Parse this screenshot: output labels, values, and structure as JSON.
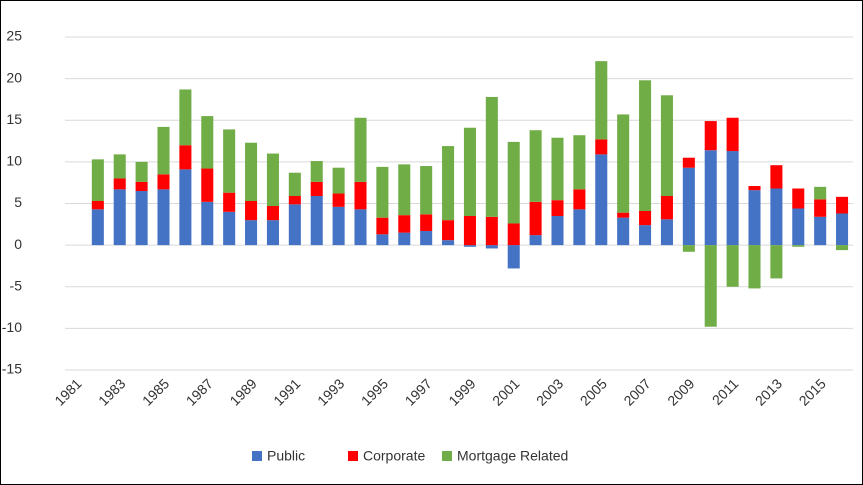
{
  "chart_data": {
    "type": "bar",
    "stacked": true,
    "categories": [
      "1981",
      null,
      "1983",
      null,
      "1985",
      null,
      "1987",
      null,
      "1989",
      null,
      "1991",
      null,
      "1993",
      null,
      "1995",
      null,
      "1997",
      null,
      "1999",
      null,
      "2001",
      null,
      "2003",
      null,
      "2005",
      null,
      "2007",
      null,
      "2009",
      null,
      "2011",
      null,
      "2013",
      null,
      "2015",
      null
    ],
    "series": [
      {
        "name": "Public",
        "color": "#4472c4",
        "values": [
          null,
          4.3,
          6.7,
          6.5,
          6.7,
          9.1,
          5.2,
          4.0,
          3.0,
          3.0,
          4.9,
          5.9,
          4.6,
          4.3,
          1.3,
          1.5,
          1.7,
          0.6,
          -0.2,
          -0.4,
          -2.8,
          1.2,
          3.5,
          4.3,
          10.9,
          3.3,
          2.4,
          3.1,
          9.3,
          11.4,
          11.3,
          6.6,
          6.8,
          4.4,
          3.4,
          3.8
        ]
      },
      {
        "name": "Corporate",
        "color": "#ff0000",
        "values": [
          null,
          1.0,
          1.3,
          1.1,
          1.8,
          2.9,
          4.0,
          2.3,
          2.3,
          1.7,
          1.0,
          1.7,
          1.6,
          3.3,
          2.0,
          2.1,
          2.0,
          2.4,
          3.5,
          3.4,
          2.6,
          4.0,
          1.9,
          2.4,
          1.8,
          0.6,
          1.7,
          2.8,
          1.2,
          3.5,
          4.0,
          0.5,
          2.8,
          2.4,
          2.1,
          2.0
        ]
      },
      {
        "name": "Mortgage Related",
        "color": "#70ad47",
        "values": [
          null,
          5.0,
          2.9,
          2.4,
          5.7,
          6.7,
          6.3,
          7.6,
          7.0,
          6.3,
          2.8,
          2.5,
          3.1,
          7.7,
          6.1,
          6.1,
          5.8,
          8.9,
          10.6,
          14.4,
          9.8,
          8.6,
          7.5,
          6.5,
          9.4,
          11.8,
          15.7,
          12.1,
          -0.8,
          -9.8,
          -5.0,
          -5.2,
          -4.0,
          -0.2,
          1.5,
          -0.6
        ]
      }
    ],
    "ylim": [
      -15,
      25
    ],
    "yticks": [
      -15,
      -10,
      -5,
      0,
      5,
      10,
      15,
      20,
      25
    ],
    "grid": true,
    "legend": "bottom"
  }
}
